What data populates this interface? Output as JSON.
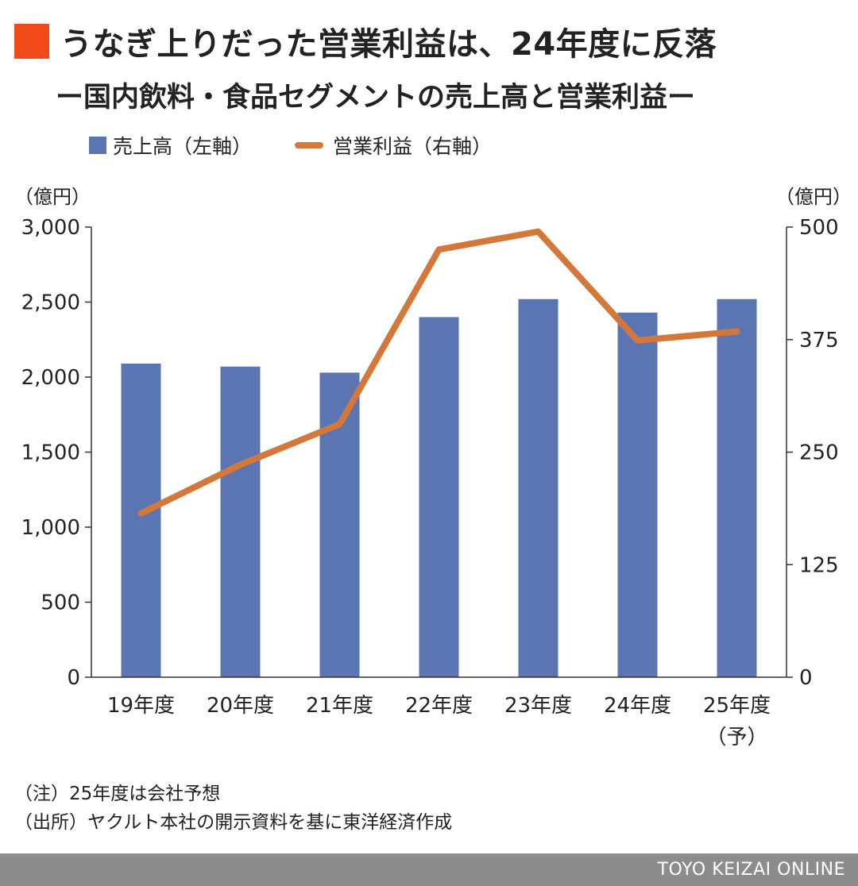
{
  "title": "うなぎ上りだった営業利益は、24年度に反落",
  "subtitle": "ー国内飲料・食品セグメントの売上高と営業利益ー",
  "colors": {
    "title_square": "#f04a1a",
    "bar": "#5b75b3",
    "line": "#d4773a",
    "axis": "#333333",
    "footer_bg": "#8c8c8c"
  },
  "legend": {
    "bar_label": "売上高（左軸）",
    "line_label": "営業利益（右軸）"
  },
  "units": {
    "left": "（億円）",
    "right": "（億円）"
  },
  "chart_data": {
    "type": "bar",
    "categories": [
      "19年度",
      "20年度",
      "21年度",
      "22年度",
      "23年度",
      "24年度",
      "25年度"
    ],
    "category_note": "（予）",
    "series": [
      {
        "name": "売上高（左軸）",
        "type": "bar",
        "axis": "left",
        "values": [
          2090,
          2070,
          2030,
          2400,
          2520,
          2430,
          2520
        ]
      },
      {
        "name": "営業利益（右軸）",
        "type": "line",
        "axis": "right",
        "values": [
          182,
          236,
          281,
          475,
          495,
          374,
          384
        ]
      }
    ],
    "y_left": {
      "min": 0,
      "max": 3000,
      "ticks": [
        0,
        500,
        1000,
        1500,
        2000,
        2500,
        3000
      ],
      "tick_labels": [
        "0",
        "500",
        "1,000",
        "1,500",
        "2,000",
        "2,500",
        "3,000"
      ]
    },
    "y_right": {
      "min": 0,
      "max": 500,
      "ticks": [
        0,
        125,
        250,
        375,
        500
      ],
      "tick_labels": [
        "0",
        "125",
        "250",
        "375",
        "500"
      ]
    },
    "grid": false,
    "legend_position": "top-left"
  },
  "notes": [
    "（注）25年度は会社予想",
    "（出所）ヤクルト本社の開示資料を基に東洋経済作成"
  ],
  "footer": {
    "brand": "TOYO KEIZAI ONLINE"
  }
}
